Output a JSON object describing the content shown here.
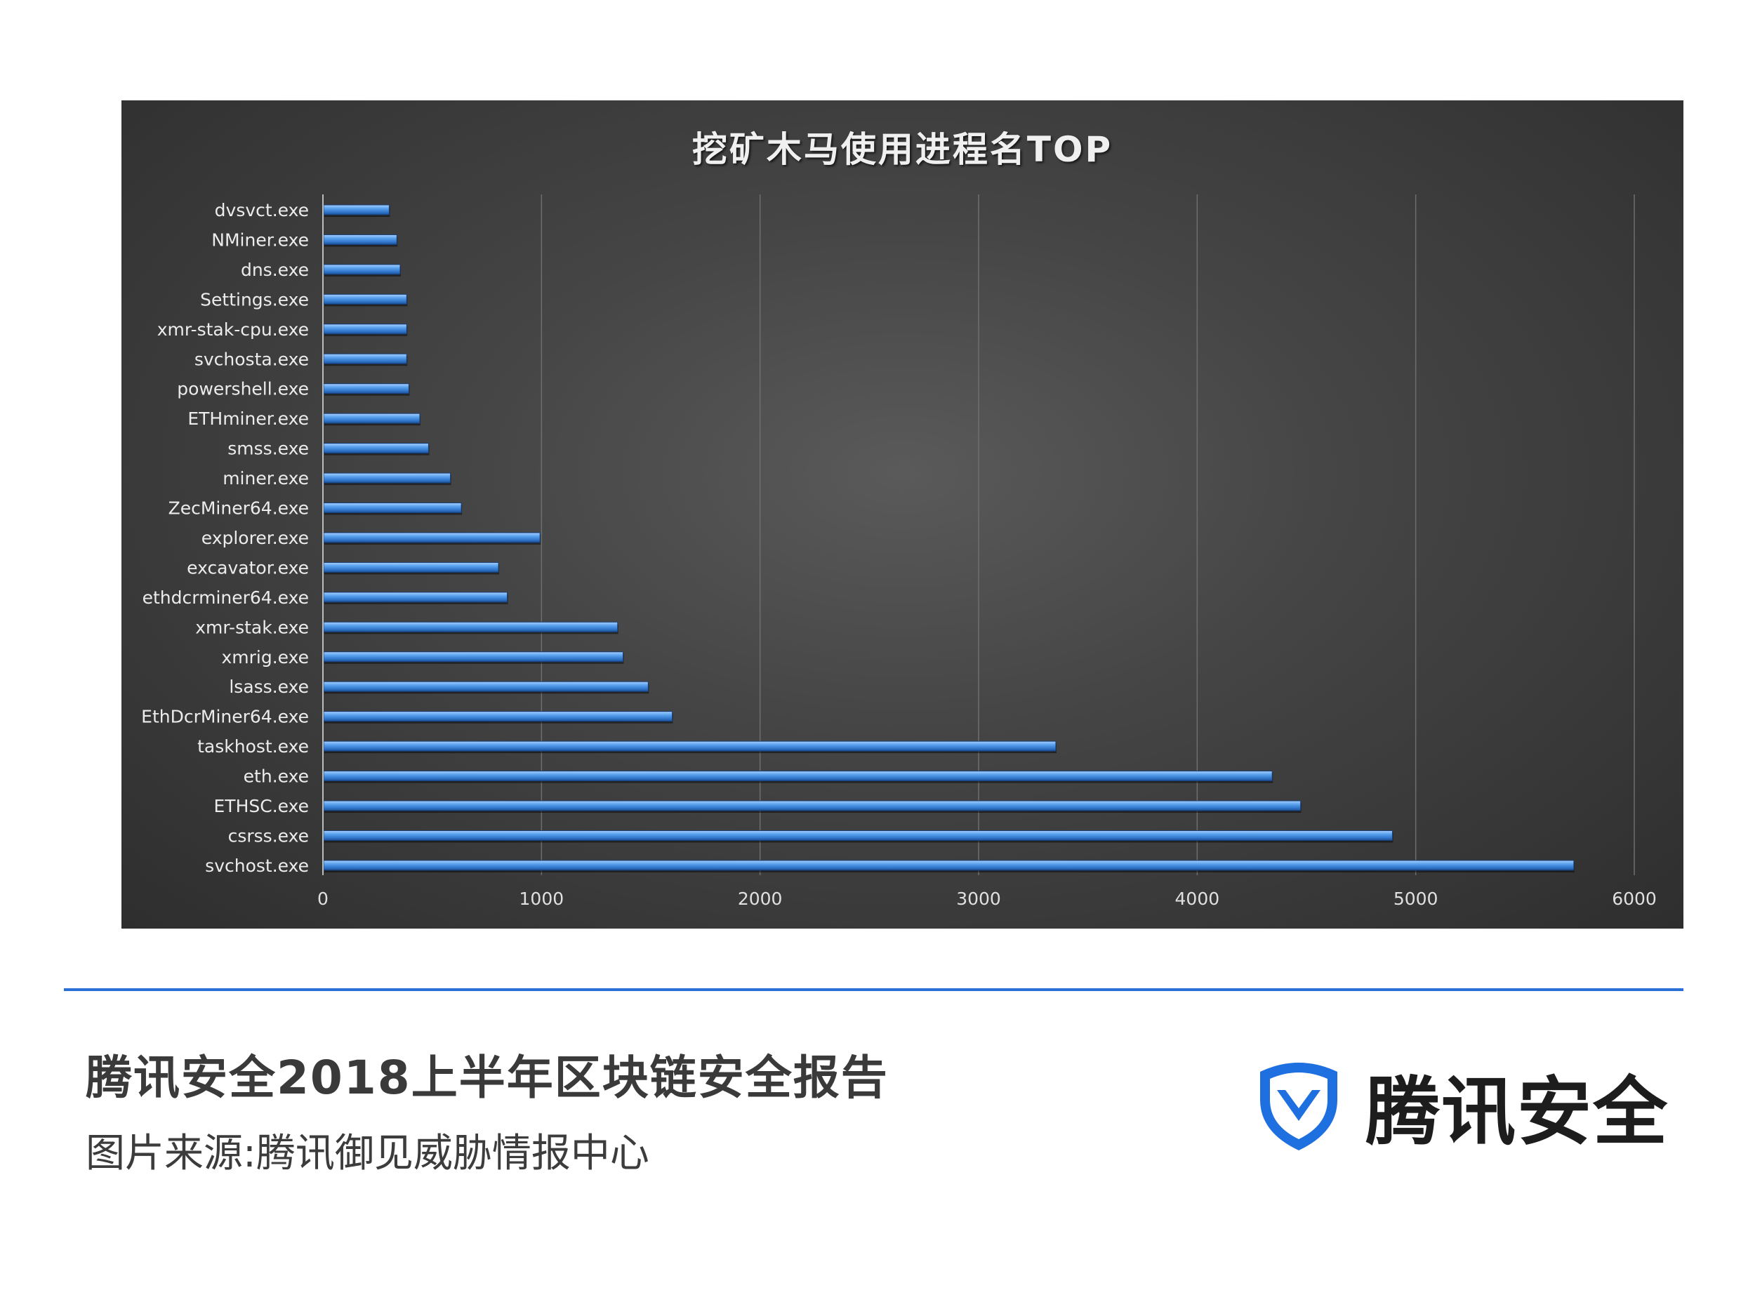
{
  "chart_data": {
    "type": "bar",
    "orientation": "horizontal",
    "title": "挖矿木马使用进程名TOP",
    "xlabel": "",
    "ylabel": "",
    "xlim": [
      0,
      6000
    ],
    "ticks": [
      "0",
      "1000",
      "2000",
      "3000",
      "4000",
      "5000",
      "6000"
    ],
    "grid": true,
    "categories": [
      "dvsvct.exe",
      "NMiner.exe",
      "dns.exe",
      "Settings.exe",
      "xmr-stak-cpu.exe",
      "svchosta.exe",
      "powershell.exe",
      "ETHminer.exe",
      "smss.exe",
      "miner.exe",
      "ZecMiner64.exe",
      "explorer.exe",
      "excavator.exe",
      "ethdcrminer64.exe",
      "xmr-stak.exe",
      "xmrig.exe",
      "lsass.exe",
      "EthDcrMiner64.exe",
      "taskhost.exe",
      "eth.exe",
      "ETHSC.exe",
      "csrss.exe",
      "svchost.exe"
    ],
    "values": [
      300,
      335,
      350,
      380,
      380,
      380,
      390,
      440,
      480,
      580,
      630,
      990,
      800,
      840,
      1345,
      1370,
      1485,
      1595,
      3350,
      4340,
      4470,
      4890,
      5720
    ],
    "bar_color": "#4a90d9"
  },
  "footer": {
    "report_title": "腾讯安全2018上半年区块链安全报告",
    "source": "图片来源:腾讯御见威胁情报中心",
    "brand_name": "腾讯安全",
    "brand_color": "#1e6fe0",
    "divider_color": "#2a6fd6"
  }
}
